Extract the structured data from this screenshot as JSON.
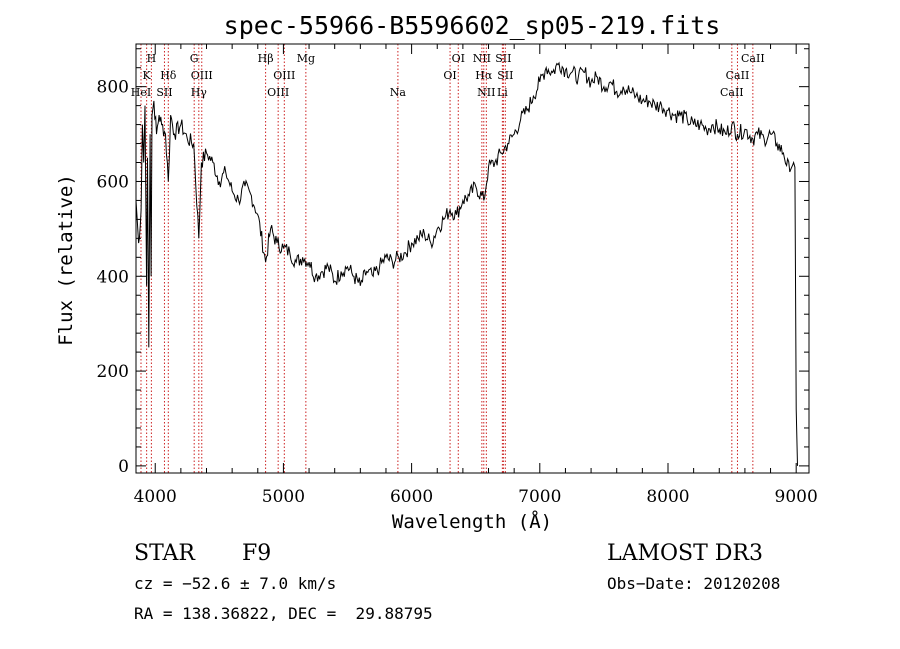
{
  "chart_data": {
    "type": "line",
    "title": "spec-55966-B5596602_sp05-219.fits",
    "xlabel": "Wavelength (Å)",
    "ylabel": "Flux (relative)",
    "xlim": [
      3850,
      9100
    ],
    "ylim": [
      -15,
      890
    ],
    "xticks": [
      4000,
      5000,
      6000,
      7000,
      8000,
      9000
    ],
    "yticks": [
      0,
      200,
      400,
      600,
      800
    ],
    "series": [
      {
        "name": "spectrum",
        "x": [
          3850,
          3870,
          3890,
          3900,
          3910,
          3920,
          3933,
          3940,
          3950,
          3960,
          3968,
          3975,
          3990,
          4010,
          4030,
          4050,
          4080,
          4102,
          4120,
          4150,
          4200,
          4250,
          4300,
          4340,
          4360,
          4400,
          4450,
          4500,
          4550,
          4600,
          4650,
          4700,
          4750,
          4800,
          4861,
          4900,
          4950,
          5000,
          5050,
          5100,
          5150,
          5200,
          5250,
          5300,
          5350,
          5400,
          5450,
          5500,
          5550,
          5600,
          5650,
          5700,
          5750,
          5800,
          5850,
          5900,
          5950,
          6000,
          6050,
          6100,
          6150,
          6200,
          6250,
          6300,
          6350,
          6400,
          6450,
          6500,
          6563,
          6600,
          6650,
          6700,
          6750,
          6800,
          6850,
          6900,
          6950,
          7000,
          7050,
          7100,
          7150,
          7200,
          7250,
          7300,
          7350,
          7400,
          7450,
          7500,
          7550,
          7600,
          7650,
          7700,
          7750,
          7800,
          7850,
          7900,
          7950,
          8000,
          8050,
          8100,
          8150,
          8200,
          8250,
          8300,
          8350,
          8400,
          8450,
          8498,
          8542,
          8600,
          8662,
          8700,
          8750,
          8800,
          8850,
          8900,
          8950,
          8980,
          8990,
          9000,
          9010
        ],
        "values": [
          560,
          470,
          540,
          720,
          640,
          760,
          380,
          650,
          250,
          700,
          400,
          740,
          770,
          700,
          740,
          720,
          700,
          600,
          740,
          700,
          720,
          690,
          680,
          480,
          640,
          660,
          640,
          600,
          620,
          580,
          560,
          590,
          570,
          530,
          430,
          500,
          470,
          460,
          450,
          430,
          440,
          430,
          400,
          410,
          420,
          390,
          410,
          420,
          400,
          380,
          410,
          400,
          420,
          440,
          430,
          440,
          450,
          470,
          480,
          490,
          470,
          500,
          520,
          540,
          530,
          560,
          570,
          590,
          560,
          630,
          640,
          660,
          680,
          700,
          730,
          750,
          780,
          810,
          840,
          830,
          850,
          835,
          830,
          820,
          830,
          810,
          820,
          800,
          810,
          790,
          800,
          790,
          780,
          770,
          770,
          760,
          760,
          750,
          740,
          740,
          730,
          720,
          720,
          710,
          720,
          710,
          700,
          720,
          700,
          710,
          690,
          700,
          690,
          700,
          680,
          660,
          620,
          640,
          630,
          120,
          0
        ]
      }
    ],
    "line_annotations": [
      {
        "name": "H",
        "wavelength": 3970,
        "row": 1
      },
      {
        "name": "K",
        "wavelength": 3933,
        "row": 2
      },
      {
        "name": "Hδ",
        "wavelength": 4102,
        "row": 2
      },
      {
        "name": "HeI",
        "wavelength": 3889,
        "row": 3
      },
      {
        "name": "SII",
        "wavelength": 4072,
        "row": 3
      },
      {
        "name": "G",
        "wavelength": 4304,
        "row": 1
      },
      {
        "name": "OIII",
        "wavelength": 4363,
        "row": 2
      },
      {
        "name": "Hγ",
        "wavelength": 4340,
        "row": 3
      },
      {
        "name": "Hβ",
        "wavelength": 4861,
        "row": 1
      },
      {
        "name": "OIII",
        "wavelength": 5007,
        "row": 2
      },
      {
        "name": "OIII",
        "wavelength": 4959,
        "row": 3
      },
      {
        "name": "Mg",
        "wavelength": 5175,
        "row": 1
      },
      {
        "name": "Na",
        "wavelength": 5893,
        "row": 3
      },
      {
        "name": "OI",
        "wavelength": 6364,
        "row": 1
      },
      {
        "name": "OI",
        "wavelength": 6300,
        "row": 2
      },
      {
        "name": "NII",
        "wavelength": 6548,
        "row": 1
      },
      {
        "name": "SII",
        "wavelength": 6716,
        "row": 1
      },
      {
        "name": "Hα",
        "wavelength": 6563,
        "row": 2
      },
      {
        "name": "SII",
        "wavelength": 6731,
        "row": 2
      },
      {
        "name": "NII",
        "wavelength": 6583,
        "row": 3
      },
      {
        "name": "Li",
        "wavelength": 6708,
        "row": 3
      },
      {
        "name": "CaII",
        "wavelength": 8662,
        "row": 1
      },
      {
        "name": "CaII",
        "wavelength": 8542,
        "row": 2
      },
      {
        "name": "CaII",
        "wavelength": 8498,
        "row": 3
      }
    ],
    "line_color": "#000000",
    "annotation_color": "#cc2222"
  },
  "info": {
    "object_class": "STAR",
    "subclass": "F9",
    "survey": "LAMOST DR3",
    "cz": "cz = −52.6 ± 7.0 km/s",
    "obs_date": "Obs−Date: 20120208",
    "coords": "RA = 138.36822, DEC =  29.88795"
  }
}
